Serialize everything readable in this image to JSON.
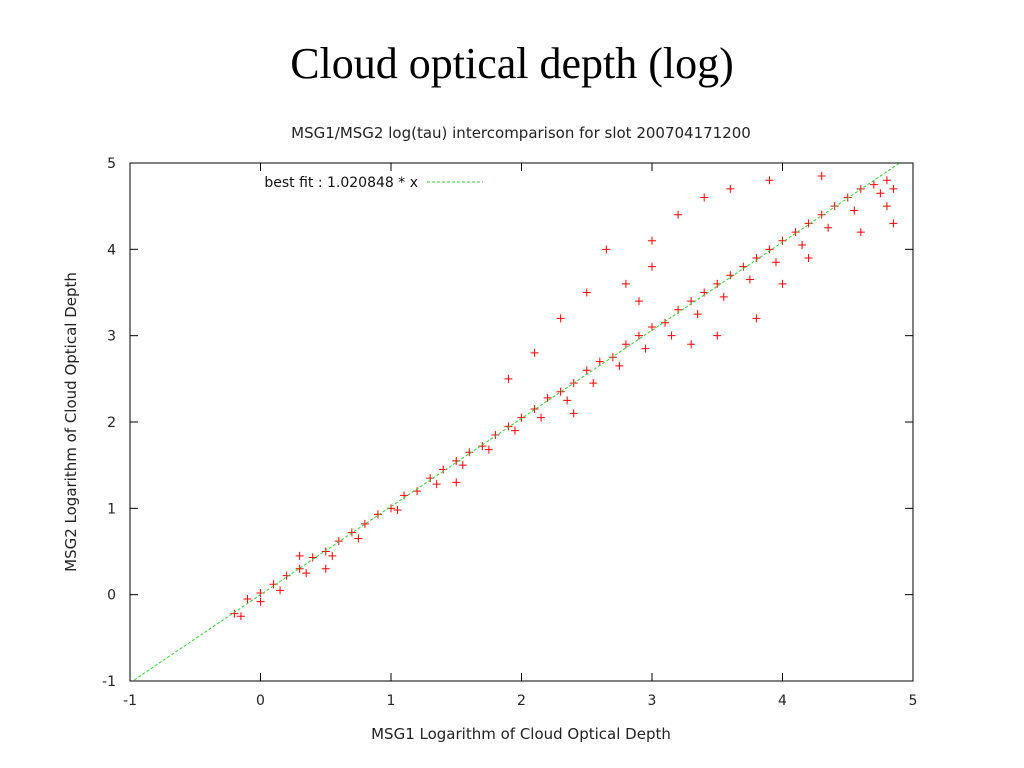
{
  "slide_title": "Cloud optical depth (log)",
  "chart_data": {
    "type": "scatter",
    "title": "MSG1/MSG2 log(tau) intercomparison for slot 200704171200",
    "x_label": "MSG1 Logarithm of Cloud Optical Depth",
    "y_label": "MSG2 Logarithm of Cloud Optical Depth",
    "xlim": [
      -1,
      5
    ],
    "ylim": [
      -1,
      5
    ],
    "xticks": [
      -1,
      0,
      1,
      2,
      3,
      4,
      5
    ],
    "yticks": [
      -1,
      0,
      1,
      2,
      3,
      4,
      5
    ],
    "color": "#ff0000",
    "x": [
      -0.2,
      -0.15,
      -0.1,
      0,
      0,
      0.1,
      0.15,
      0.2,
      0.3,
      0.35,
      0.4,
      0.5,
      0.55,
      0.6,
      0.7,
      0.75,
      0.8,
      0.9,
      1.0,
      1.05,
      1.1,
      1.2,
      1.3,
      1.35,
      1.4,
      1.5,
      1.55,
      1.6,
      1.7,
      1.75,
      1.8,
      1.9,
      1.95,
      2.0,
      2.1,
      2.15,
      2.2,
      2.3,
      2.35,
      2.4,
      2.5,
      2.55,
      2.6,
      2.7,
      2.75,
      2.8,
      2.9,
      2.95,
      3.0,
      3.1,
      3.15,
      3.2,
      3.3,
      3.35,
      3.4,
      3.5,
      3.55,
      3.6,
      3.7,
      3.75,
      3.8,
      3.9,
      3.95,
      4.0,
      4.1,
      4.15,
      4.2,
      4.3,
      4.35,
      4.4,
      4.5,
      4.55,
      4.6,
      4.7,
      4.75,
      4.8,
      4.85,
      2.3,
      2.5,
      2.65,
      2.8,
      3.0,
      3.2,
      3.0,
      2.9,
      3.4,
      3.6,
      3.9,
      4.3,
      3.5,
      3.8,
      4.0,
      4.2,
      4.6,
      4.8,
      1.9,
      2.1,
      0.5,
      0.3,
      1.5,
      4.85,
      3.3,
      2.4
    ],
    "y": [
      -0.22,
      -0.25,
      -0.05,
      0.02,
      -0.08,
      0.12,
      0.05,
      0.22,
      0.3,
      0.25,
      0.43,
      0.5,
      0.45,
      0.62,
      0.72,
      0.65,
      0.82,
      0.93,
      1.0,
      0.98,
      1.15,
      1.2,
      1.35,
      1.28,
      1.45,
      1.55,
      1.5,
      1.65,
      1.72,
      1.68,
      1.85,
      1.95,
      1.9,
      2.05,
      2.15,
      2.05,
      2.28,
      2.35,
      2.25,
      2.45,
      2.6,
      2.45,
      2.7,
      2.75,
      2.65,
      2.9,
      3.0,
      2.85,
      3.1,
      3.15,
      3.0,
      3.3,
      3.4,
      3.25,
      3.5,
      3.6,
      3.45,
      3.7,
      3.8,
      3.65,
      3.9,
      4.0,
      3.85,
      4.1,
      4.2,
      4.05,
      4.3,
      4.4,
      4.25,
      4.5,
      4.6,
      4.45,
      4.7,
      4.75,
      4.65,
      4.8,
      4.7,
      3.2,
      3.5,
      4.0,
      3.6,
      4.1,
      4.4,
      3.8,
      3.4,
      4.6,
      4.7,
      4.8,
      4.85,
      3.0,
      3.2,
      3.6,
      3.9,
      4.2,
      4.5,
      2.5,
      2.8,
      0.3,
      0.45,
      1.3,
      4.3,
      2.9,
      2.1
    ],
    "fit": {
      "label": "best fit : 1.020848 * x",
      "slope": 1.020848,
      "color": "#33cc33"
    }
  }
}
